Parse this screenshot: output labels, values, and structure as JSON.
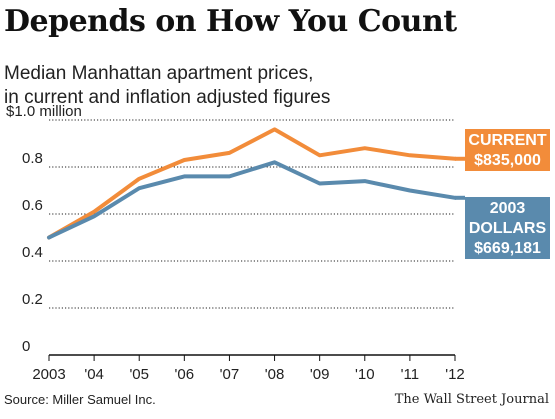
{
  "title": "Depends on How You Count",
  "subtitle_line1": "Median Manhattan apartment prices,",
  "subtitle_line2": "in current and inflation adjusted figures",
  "source": "Source: Miller Samuel Inc.",
  "credit": "The Wall Street Journal",
  "colors": {
    "current": "#f28c3a",
    "adjusted": "#5a8aad",
    "grid": "#222222",
    "background": "#ffffff"
  },
  "chart_data": {
    "type": "line",
    "x": [
      "2003",
      "'04",
      "'05",
      "'06",
      "'07",
      "'08",
      "'09",
      "'10",
      "'11",
      "'12"
    ],
    "ylim": [
      0,
      1.0
    ],
    "yticks": [
      {
        "value": 1.0,
        "label": "$1.0 million"
      },
      {
        "value": 0.8,
        "label": "0.8"
      },
      {
        "value": 0.6,
        "label": "0.6"
      },
      {
        "value": 0.4,
        "label": "0.4"
      },
      {
        "value": 0.2,
        "label": "0.2"
      },
      {
        "value": 0,
        "label": "0"
      }
    ],
    "series": [
      {
        "key": "current",
        "values": [
          0.5,
          0.61,
          0.75,
          0.83,
          0.86,
          0.96,
          0.85,
          0.88,
          0.85,
          0.835
        ],
        "label_lines": [
          "CURRENT",
          "$835,000"
        ]
      },
      {
        "key": "adjusted",
        "values": [
          0.5,
          0.59,
          0.71,
          0.76,
          0.76,
          0.82,
          0.73,
          0.74,
          0.7,
          0.669
        ],
        "label_lines": [
          "2003",
          "DOLLARS",
          "$669,181"
        ]
      }
    ]
  }
}
